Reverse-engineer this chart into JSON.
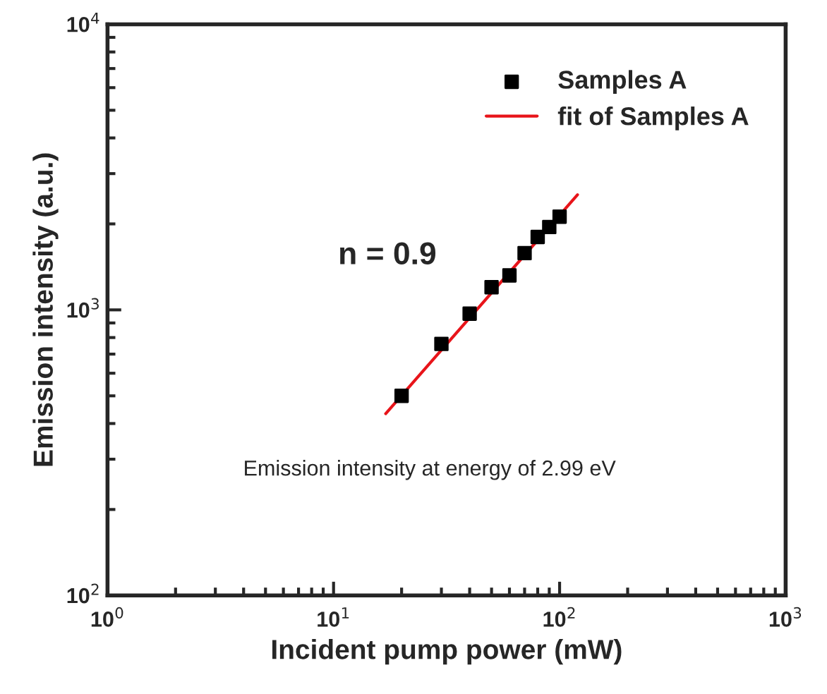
{
  "chart_data": {
    "type": "scatter",
    "xlabel": "Incident pump power (mW)",
    "ylabel": "Emission intensity (a.u.)",
    "log": "xy",
    "xlim": [
      1,
      1000
    ],
    "ylim": [
      100,
      10000
    ],
    "xticks": [
      {
        "value": 1,
        "label": "10$^{0}$"
      },
      {
        "value": 10,
        "label": "10$^{1}$"
      },
      {
        "value": 100,
        "label": "10$^{2}$"
      },
      {
        "value": 1000,
        "label": "10$^{3}$"
      }
    ],
    "yticks": [
      {
        "value": 100,
        "label": "10$^{2}$"
      },
      {
        "value": 1000,
        "label": "10$^{3}$"
      },
      {
        "value": 10000,
        "label": "10$^{4}$"
      }
    ],
    "series": [
      {
        "name": "Samples A",
        "color": "#000000",
        "marker": "square",
        "x": [
          20,
          30,
          40,
          50,
          60,
          70,
          80,
          90,
          100
        ],
        "values": [
          500,
          760,
          970,
          1200,
          1320,
          1580,
          1800,
          1950,
          2120
        ]
      },
      {
        "name": "fit of Samples A",
        "type": "line",
        "color": "#e8141a",
        "line_style": "solid",
        "x": [
          17,
          120
        ],
        "values": [
          433,
          2530
        ]
      }
    ],
    "legend": "top right",
    "grid": false,
    "annotations": [
      "n = 0.9",
      "Emission intensity at energy of 2.99 eV"
    ]
  }
}
